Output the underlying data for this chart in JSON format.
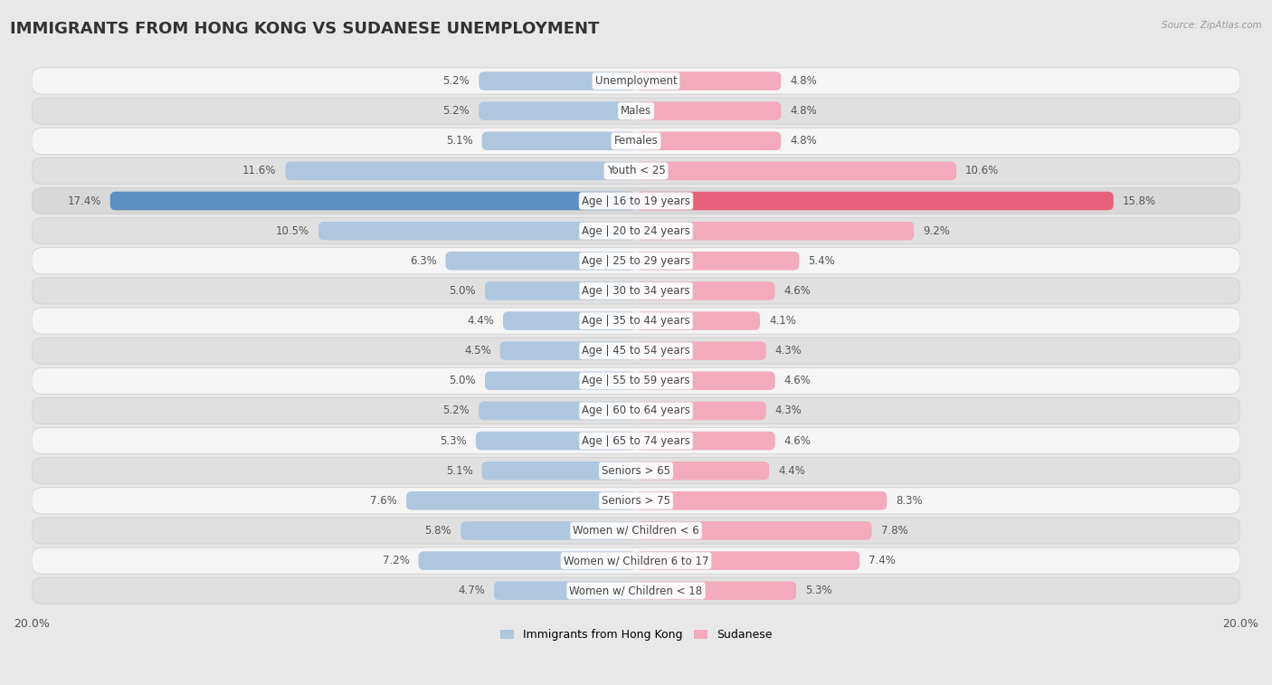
{
  "title": "IMMIGRANTS FROM HONG KONG VS SUDANESE UNEMPLOYMENT",
  "source": "Source: ZipAtlas.com",
  "categories": [
    "Unemployment",
    "Males",
    "Females",
    "Youth < 25",
    "Age | 16 to 19 years",
    "Age | 20 to 24 years",
    "Age | 25 to 29 years",
    "Age | 30 to 34 years",
    "Age | 35 to 44 years",
    "Age | 45 to 54 years",
    "Age | 55 to 59 years",
    "Age | 60 to 64 years",
    "Age | 65 to 74 years",
    "Seniors > 65",
    "Seniors > 75",
    "Women w/ Children < 6",
    "Women w/ Children 6 to 17",
    "Women w/ Children < 18"
  ],
  "hong_kong": [
    5.2,
    5.2,
    5.1,
    11.6,
    17.4,
    10.5,
    6.3,
    5.0,
    4.4,
    4.5,
    5.0,
    5.2,
    5.3,
    5.1,
    7.6,
    5.8,
    7.2,
    4.7
  ],
  "sudanese": [
    4.8,
    4.8,
    4.8,
    10.6,
    15.8,
    9.2,
    5.4,
    4.6,
    4.1,
    4.3,
    4.6,
    4.3,
    4.6,
    4.4,
    8.3,
    7.8,
    7.4,
    5.3
  ],
  "hk_color": "#aec6de",
  "sudanese_color": "#f2aabc",
  "hk_color_highlight": "#5b8fc0",
  "sudanese_color_highlight": "#e8607a",
  "bg_color": "#e8e8e8",
  "row_color_light": "#f5f5f5",
  "row_color_dark": "#e0e0e0",
  "highlight_row_bg": "#d8d8d8",
  "max_val": 20.0,
  "bar_height": 0.62,
  "title_fontsize": 13,
  "label_fontsize": 8.5,
  "value_fontsize": 8.5,
  "legend_fontsize": 9
}
